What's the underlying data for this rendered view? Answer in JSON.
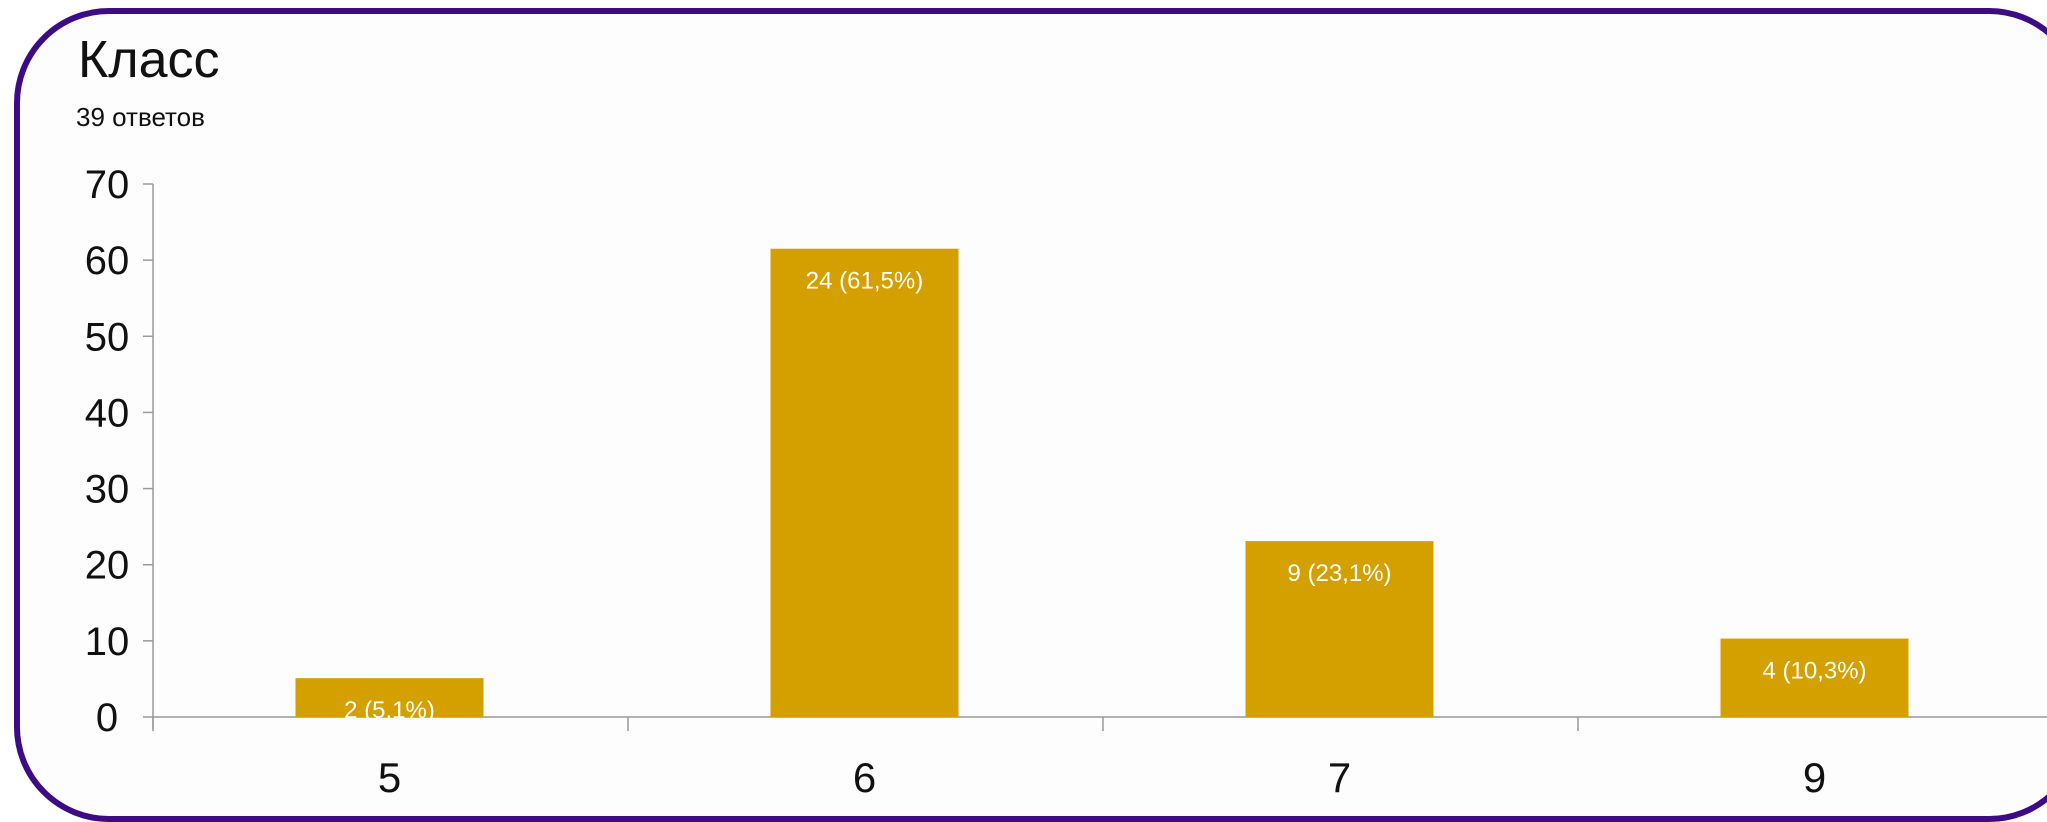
{
  "title": "Класс",
  "subtitle": "39 ответов",
  "chart_data": {
    "type": "bar",
    "categories": [
      "5",
      "6",
      "7",
      "9"
    ],
    "values": [
      5.1,
      61.5,
      23.1,
      10.3
    ],
    "data_labels": [
      "2 (5,1%)",
      "24 (61,5%)",
      "9 (23,1%)",
      "4 (10,3%)"
    ],
    "yticks": [
      "0",
      "10",
      "20",
      "30",
      "40",
      "50",
      "60",
      "70"
    ],
    "ylim": [
      0,
      70
    ],
    "grid": false,
    "legend": "none",
    "bar_color": "#d4a000",
    "frame_color": "#3d0c85"
  }
}
